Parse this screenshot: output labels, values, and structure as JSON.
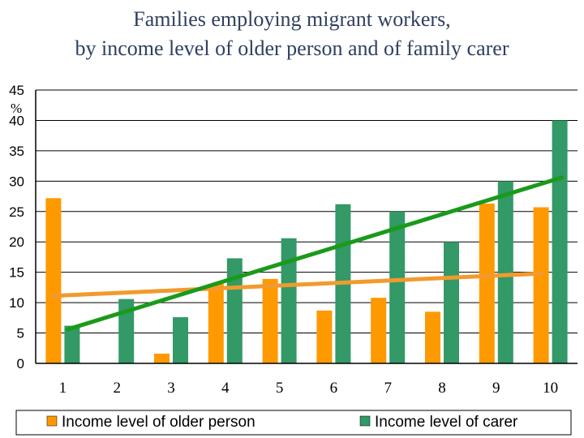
{
  "chart_data": {
    "type": "bar",
    "title_lines": [
      "Families employing migrant workers,",
      "by income level of older person and of family carer"
    ],
    "ylabel": "%",
    "ylim": [
      0,
      45
    ],
    "yticks": [
      0,
      5,
      10,
      15,
      20,
      25,
      30,
      35,
      40,
      45
    ],
    "grid": true,
    "categories": [
      "1",
      "2",
      "3",
      "4",
      "5",
      "6",
      "7",
      "8",
      "9",
      "10"
    ],
    "series": [
      {
        "name": "Income level of older person",
        "color": "#ff9900",
        "values": [
          27.2,
          0,
          1.6,
          13.1,
          13.9,
          8.7,
          10.8,
          8.5,
          26.3,
          25.7
        ],
        "trend": [
          11.1,
          14.8
        ]
      },
      {
        "name": "Income level of carer",
        "color": "#339966",
        "values": [
          6.2,
          10.6,
          7.6,
          17.3,
          20.6,
          26.2,
          25.0,
          20.0,
          30.0,
          40.0
        ],
        "trend": [
          5.6,
          30.6
        ]
      }
    ],
    "trend_colors": [
      "#f29a2e",
      "#1a9a1a"
    ],
    "legend_position": "bottom"
  }
}
